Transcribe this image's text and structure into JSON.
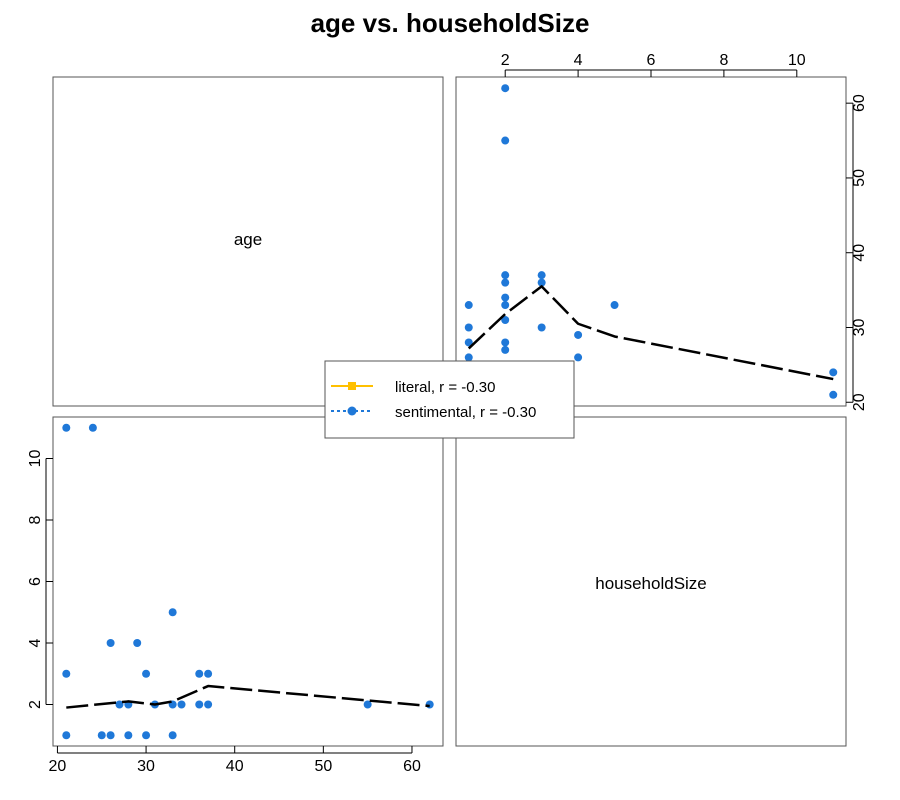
{
  "chart_data": {
    "type": "scatter",
    "title": "age vs. householdSize",
    "variables": [
      "age",
      "householdSize"
    ],
    "colors": {
      "literal": "#ffc000",
      "sentimental": "#1f78d8",
      "smoother": "#000000",
      "frame": "#555555"
    },
    "points": [
      {
        "age": 62,
        "householdSize": 2
      },
      {
        "age": 55,
        "householdSize": 2
      },
      {
        "age": 37,
        "householdSize": 2
      },
      {
        "age": 36,
        "householdSize": 2
      },
      {
        "age": 34,
        "householdSize": 2
      },
      {
        "age": 33,
        "householdSize": 2
      },
      {
        "age": 31,
        "householdSize": 2
      },
      {
        "age": 28,
        "householdSize": 2
      },
      {
        "age": 27,
        "householdSize": 2
      },
      {
        "age": 37,
        "householdSize": 3
      },
      {
        "age": 36,
        "householdSize": 3
      },
      {
        "age": 30,
        "householdSize": 3
      },
      {
        "age": 33,
        "householdSize": 1
      },
      {
        "age": 30,
        "householdSize": 1
      },
      {
        "age": 28,
        "householdSize": 1
      },
      {
        "age": 26,
        "householdSize": 1
      },
      {
        "age": 25,
        "householdSize": 1
      },
      {
        "age": 21,
        "householdSize": 1
      },
      {
        "age": 29,
        "householdSize": 4
      },
      {
        "age": 26,
        "householdSize": 4
      },
      {
        "age": 33,
        "householdSize": 5
      },
      {
        "age": 24,
        "householdSize": 11
      },
      {
        "age": 21,
        "householdSize": 11
      },
      {
        "age": 21,
        "householdSize": 3
      }
    ],
    "smoother": {
      "age_on_householdSize": [
        {
          "x": 1,
          "y": 27.2
        },
        {
          "x": 2,
          "y": 31.8
        },
        {
          "x": 3,
          "y": 35.5
        },
        {
          "x": 4,
          "y": 30.5
        },
        {
          "x": 5,
          "y": 28.8
        },
        {
          "x": 11,
          "y": 23.1
        }
      ],
      "householdSize_on_age": [
        {
          "x": 21,
          "y": 1.9
        },
        {
          "x": 28,
          "y": 2.1
        },
        {
          "x": 31,
          "y": 2.0
        },
        {
          "x": 33,
          "y": 2.1
        },
        {
          "x": 37,
          "y": 2.6
        },
        {
          "x": 62,
          "y": 1.95
        }
      ]
    },
    "axes": {
      "age": {
        "ticks": [
          20,
          30,
          40,
          50,
          60
        ],
        "range": [
          19.5,
          63.5
        ]
      },
      "householdSize": {
        "ticks": [
          2,
          4,
          6,
          8,
          10
        ],
        "range": [
          0.65,
          11.35
        ]
      }
    },
    "legend": {
      "position": "center",
      "entries": [
        {
          "label": "literal, r = -0.30",
          "color": "#ffc000",
          "marker": "square",
          "line": "solid"
        },
        {
          "label": "sentimental, r = -0.30",
          "color": "#1f78d8",
          "marker": "circle",
          "line": "dotted"
        }
      ]
    },
    "grid": false
  }
}
